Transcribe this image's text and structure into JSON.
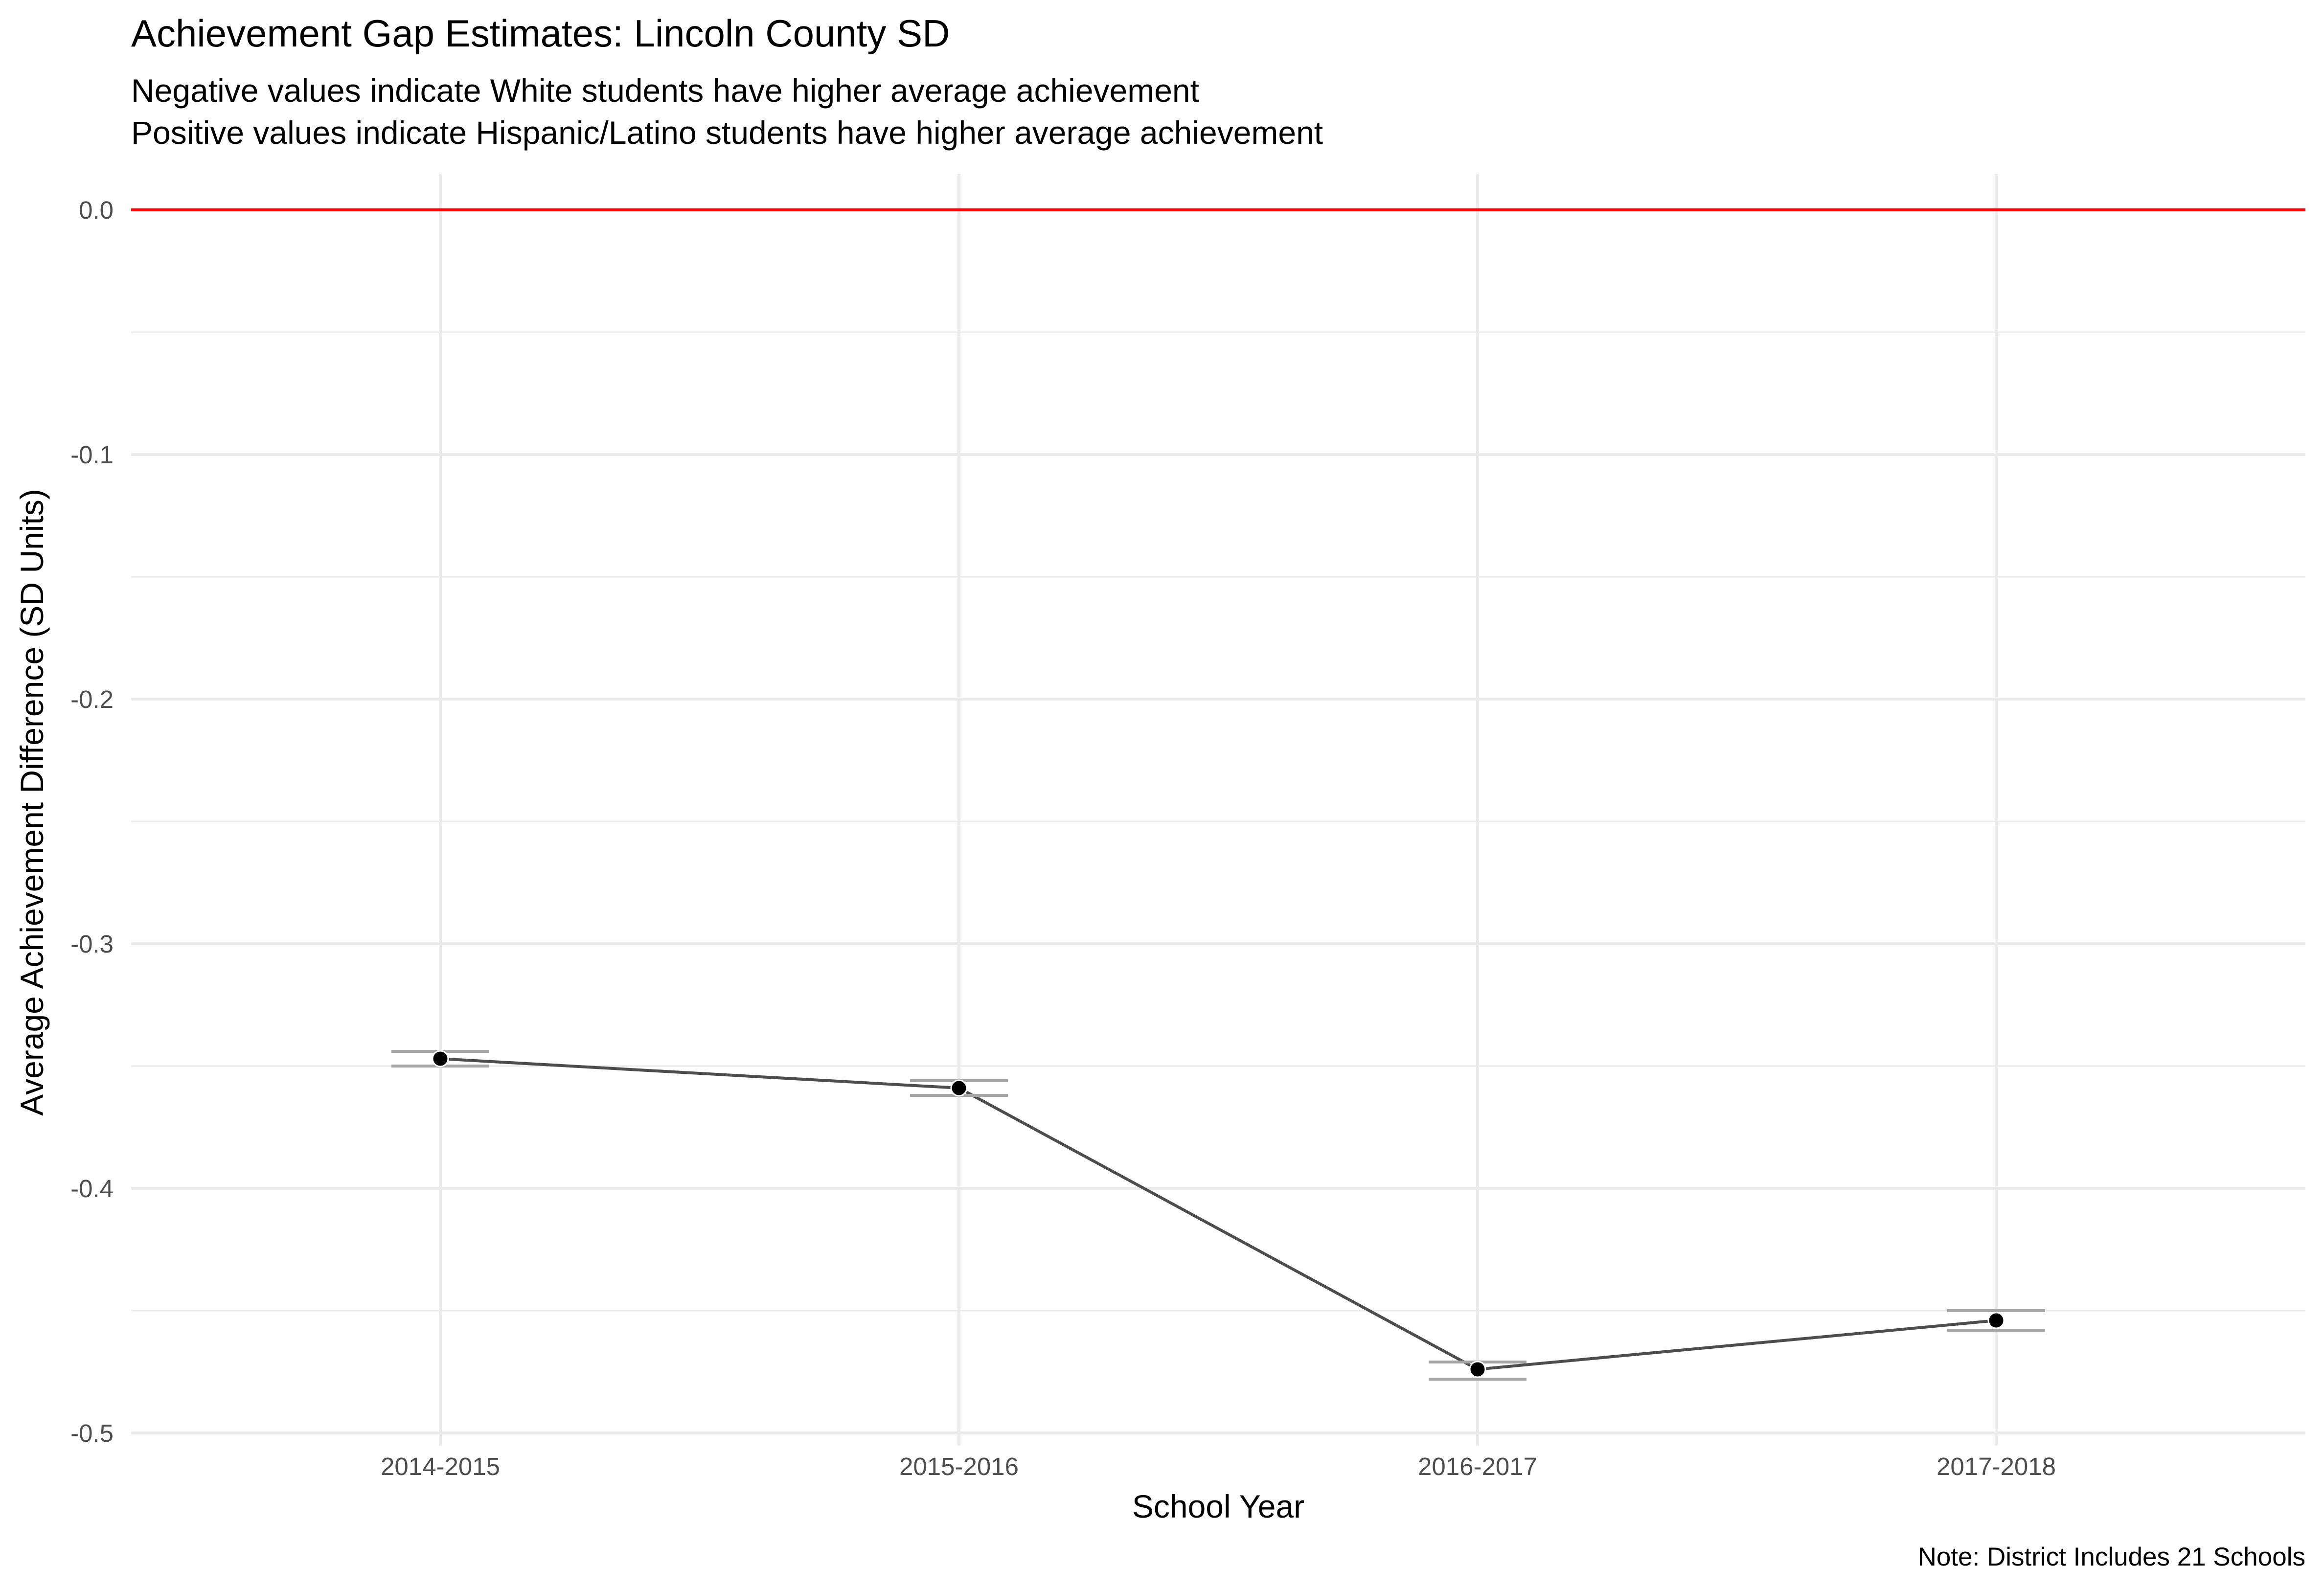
{
  "chart_data": {
    "type": "line",
    "title": "Achievement Gap Estimates: Lincoln County SD",
    "subtitle_lines": [
      "Negative values indicate White students have higher average achievement",
      "Positive values indicate Hispanic/Latino students have higher average achievement"
    ],
    "xlabel": "School Year",
    "ylabel": "Average Achievement Difference (SD Units)",
    "caption": "Note: District Includes 21 Schools",
    "categories": [
      "2014-2015",
      "2015-2016",
      "2016-2017",
      "2017-2018"
    ],
    "series": [
      {
        "values": [
          -0.347,
          -0.359,
          -0.474,
          -0.454
        ],
        "error_low": [
          -0.35,
          -0.362,
          -0.478,
          -0.458
        ],
        "error_high": [
          -0.344,
          -0.356,
          -0.471,
          -0.45
        ]
      }
    ],
    "reference_line": {
      "y": 0.0,
      "color": "#ff0000"
    },
    "ylim": [
      -0.5,
      0.0
    ],
    "yticks": [
      0.0,
      -0.1,
      -0.2,
      -0.3,
      -0.4,
      -0.5
    ],
    "ytick_labels": [
      "0.0",
      "-0.1",
      "-0.2",
      "-0.3",
      "-0.4",
      "-0.5"
    ],
    "grid": true,
    "colors": {
      "line": "#4d4d4d",
      "point": "#000000",
      "errorbar": "#a6a6a6",
      "grid": "#ebebeb"
    }
  }
}
